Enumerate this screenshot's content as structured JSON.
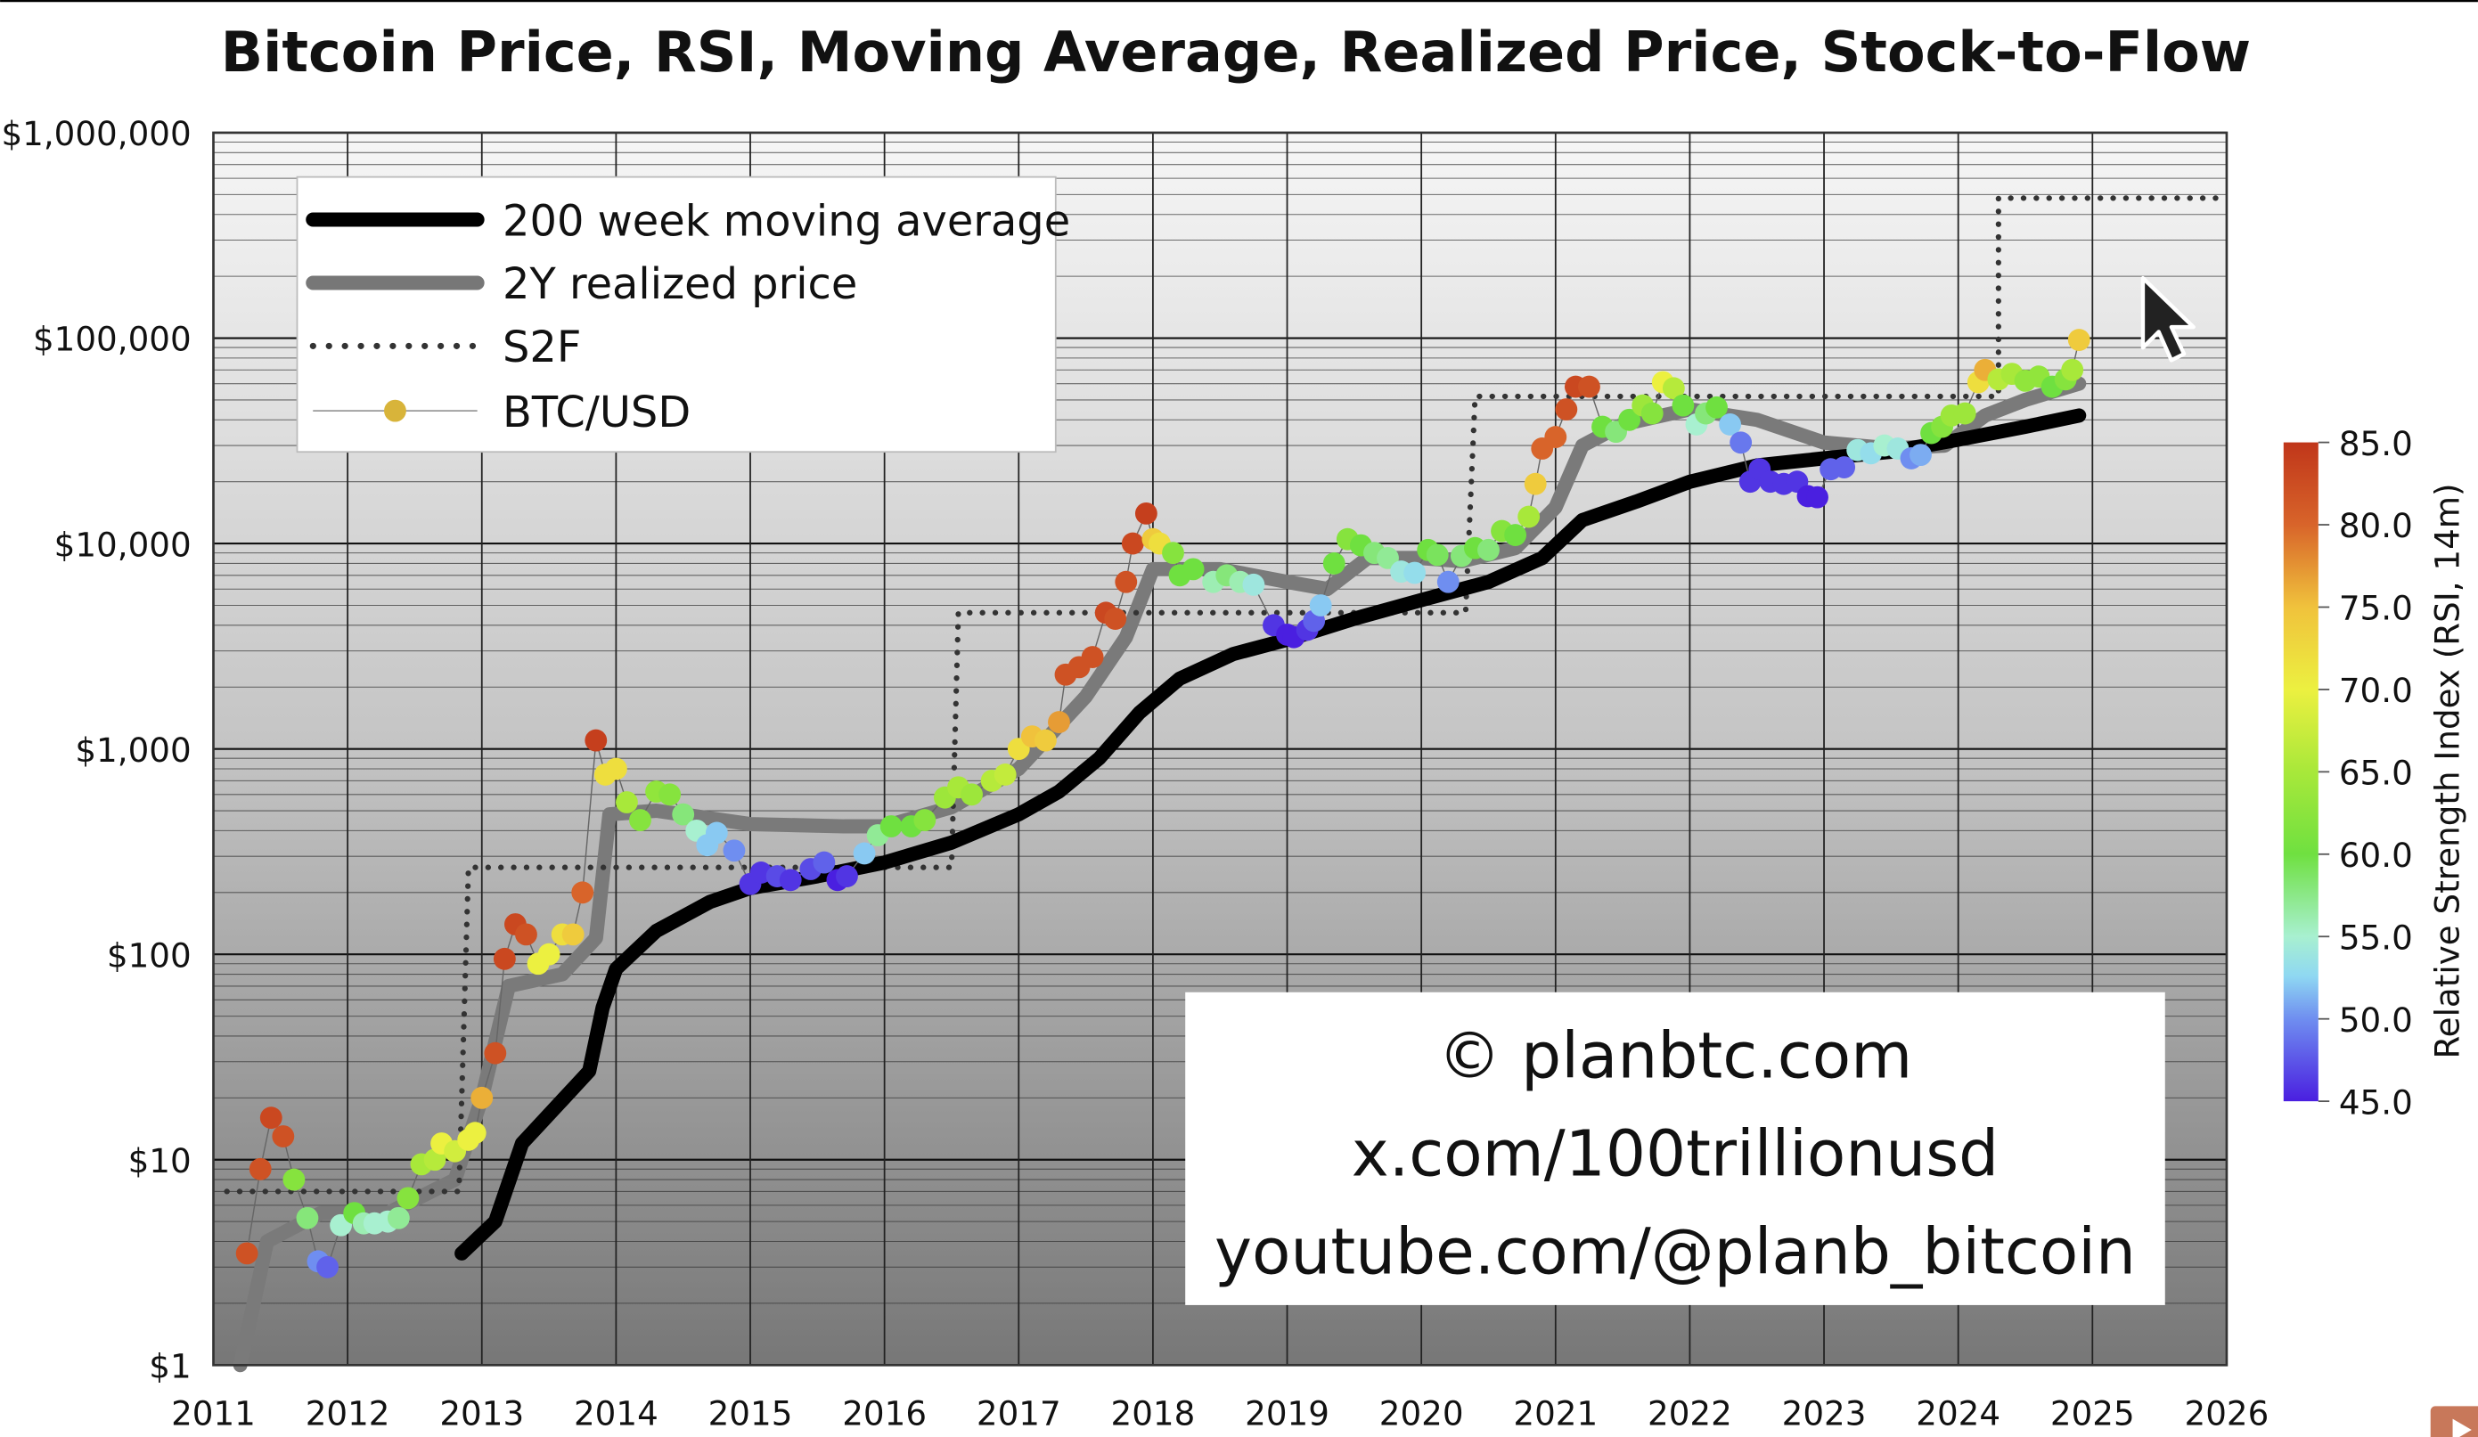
{
  "chart_data": {
    "type": "scatter",
    "title": "Bitcoin Price, RSI, Moving Average, Realized Price, Stock-to-Flow",
    "xlabel": "",
    "ylabel": "",
    "y_scale": "log",
    "xlim": [
      2011,
      2026
    ],
    "ylim": [
      1,
      1000000
    ],
    "grid": true,
    "x_ticks": [
      "2011",
      "2012",
      "2013",
      "2014",
      "2015",
      "2016",
      "2017",
      "2018",
      "2019",
      "2020",
      "2021",
      "2022",
      "2023",
      "2024",
      "2025",
      "2026"
    ],
    "y_ticks": [
      {
        "value": 1000000,
        "label": "$1,000,000"
      },
      {
        "value": 100000,
        "label": "$100,000"
      },
      {
        "value": 10000,
        "label": "$10,000"
      },
      {
        "value": 1000,
        "label": "$1,000"
      },
      {
        "value": 100,
        "label": "$100"
      },
      {
        "value": 10,
        "label": "$10"
      },
      {
        "value": 1,
        "label": "$1"
      }
    ],
    "legend": {
      "placement": "top-left",
      "entries": [
        "200 week moving average",
        "2Y realized price",
        "S2F",
        "BTC/USD"
      ]
    },
    "colorbar": {
      "label": "Relative Strength Index (RSI, 14m)",
      "range": [
        45,
        85
      ],
      "ticks": [
        "85.0",
        "80.0",
        "75.0",
        "70.0",
        "65.0",
        "60.0",
        "55.0",
        "50.0",
        "45.0"
      ],
      "colors": {
        "45": "#4a1fe0",
        "50": "#6f8ef0",
        "52.5": "#8fd8f2",
        "55": "#a8f0d0",
        "60": "#6fe040",
        "65": "#a8e83a",
        "70": "#ecf040",
        "75": "#f0c23c",
        "80": "#d8642a",
        "85": "#c0361a"
      }
    },
    "series": [
      {
        "name": "200 week moving average",
        "color": "#000000",
        "points": [
          [
            2012.85,
            3.5
          ],
          [
            2013.1,
            5
          ],
          [
            2013.3,
            12
          ],
          [
            2013.55,
            18
          ],
          [
            2013.8,
            27
          ],
          [
            2013.9,
            55
          ],
          [
            2014.0,
            85
          ],
          [
            2014.3,
            130
          ],
          [
            2014.7,
            180
          ],
          [
            2015.0,
            210
          ],
          [
            2015.5,
            240
          ],
          [
            2016.0,
            280
          ],
          [
            2016.5,
            350
          ],
          [
            2017.0,
            480
          ],
          [
            2017.3,
            620
          ],
          [
            2017.6,
            900
          ],
          [
            2017.9,
            1500
          ],
          [
            2018.2,
            2200
          ],
          [
            2018.6,
            2900
          ],
          [
            2019.0,
            3400
          ],
          [
            2019.5,
            4300
          ],
          [
            2020.0,
            5300
          ],
          [
            2020.5,
            6500
          ],
          [
            2020.9,
            8500
          ],
          [
            2021.2,
            13000
          ],
          [
            2021.6,
            16000
          ],
          [
            2022.0,
            20000
          ],
          [
            2022.5,
            24000
          ],
          [
            2023.0,
            26000
          ],
          [
            2023.5,
            28000
          ],
          [
            2024.0,
            32000
          ],
          [
            2024.5,
            37000
          ],
          [
            2024.9,
            42000
          ]
        ]
      },
      {
        "name": "2Y realized price",
        "color": "#7a7a7a",
        "points": [
          [
            2011.2,
            1
          ],
          [
            2011.4,
            4
          ],
          [
            2011.8,
            5.5
          ],
          [
            2012.3,
            5.5
          ],
          [
            2012.8,
            8
          ],
          [
            2013.0,
            20
          ],
          [
            2013.2,
            70
          ],
          [
            2013.6,
            80
          ],
          [
            2013.85,
            120
          ],
          [
            2013.95,
            480
          ],
          [
            2014.3,
            500
          ],
          [
            2015.0,
            430
          ],
          [
            2015.7,
            420
          ],
          [
            2016.0,
            420
          ],
          [
            2016.5,
            520
          ],
          [
            2017.0,
            800
          ],
          [
            2017.5,
            1800
          ],
          [
            2017.8,
            3500
          ],
          [
            2018.0,
            7500
          ],
          [
            2018.5,
            7500
          ],
          [
            2019.0,
            6500
          ],
          [
            2019.3,
            6000
          ],
          [
            2019.6,
            8500
          ],
          [
            2020.0,
            8500
          ],
          [
            2020.3,
            8200
          ],
          [
            2020.7,
            9500
          ],
          [
            2021.0,
            15000
          ],
          [
            2021.2,
            30000
          ],
          [
            2021.5,
            38000
          ],
          [
            2022.0,
            45000
          ],
          [
            2022.5,
            40000
          ],
          [
            2023.0,
            31000
          ],
          [
            2023.5,
            29000
          ],
          [
            2023.9,
            30000
          ],
          [
            2024.2,
            42000
          ],
          [
            2024.5,
            50000
          ],
          [
            2024.9,
            60000
          ]
        ]
      },
      {
        "name": "S2F",
        "color": "#333333",
        "points": [
          [
            2011.1,
            7
          ],
          [
            2012.83,
            7
          ],
          [
            2012.9,
            265
          ],
          [
            2016.5,
            265
          ],
          [
            2016.55,
            4600
          ],
          [
            2020.33,
            4600
          ],
          [
            2020.4,
            52000
          ],
          [
            2024.3,
            52000
          ],
          [
            2024.3,
            480000
          ],
          [
            2026,
            480000
          ]
        ]
      },
      {
        "name": "BTC/USD",
        "color_by": "rsi",
        "points": [
          [
            2011.25,
            3.5,
            82
          ],
          [
            2011.35,
            9,
            82
          ],
          [
            2011.43,
            16,
            83
          ],
          [
            2011.52,
            13,
            82
          ],
          [
            2011.6,
            8,
            62
          ],
          [
            2011.7,
            5.2,
            58
          ],
          [
            2011.78,
            3.2,
            50
          ],
          [
            2011.85,
            3,
            48
          ],
          [
            2011.95,
            4.8,
            55
          ],
          [
            2012.05,
            5.5,
            60
          ],
          [
            2012.12,
            4.9,
            56
          ],
          [
            2012.2,
            4.9,
            55
          ],
          [
            2012.3,
            5,
            55
          ],
          [
            2012.38,
            5.2,
            57
          ],
          [
            2012.45,
            6.5,
            62
          ],
          [
            2012.55,
            9.5,
            65
          ],
          [
            2012.65,
            10,
            66
          ],
          [
            2012.7,
            12,
            70
          ],
          [
            2012.8,
            11,
            68
          ],
          [
            2012.9,
            12.5,
            70
          ],
          [
            2012.95,
            13.5,
            70
          ],
          [
            2013.0,
            20,
            76
          ],
          [
            2013.1,
            33,
            82
          ],
          [
            2013.17,
            95,
            83
          ],
          [
            2013.25,
            140,
            83
          ],
          [
            2013.33,
            125,
            82
          ],
          [
            2013.42,
            90,
            70
          ],
          [
            2013.5,
            100,
            70
          ],
          [
            2013.6,
            125,
            72
          ],
          [
            2013.68,
            125,
            74
          ],
          [
            2013.75,
            200,
            80
          ],
          [
            2013.85,
            1100,
            84
          ],
          [
            2013.92,
            750,
            72
          ],
          [
            2014.0,
            800,
            72
          ],
          [
            2014.08,
            550,
            65
          ],
          [
            2014.18,
            450,
            62
          ],
          [
            2014.3,
            620,
            63
          ],
          [
            2014.4,
            600,
            62
          ],
          [
            2014.5,
            480,
            58
          ],
          [
            2014.6,
            400,
            55
          ],
          [
            2014.68,
            340,
            52
          ],
          [
            2014.75,
            390,
            52
          ],
          [
            2014.88,
            320,
            50
          ],
          [
            2015.0,
            220,
            46
          ],
          [
            2015.08,
            250,
            46
          ],
          [
            2015.2,
            240,
            47
          ],
          [
            2015.3,
            230,
            46
          ],
          [
            2015.45,
            260,
            47
          ],
          [
            2015.55,
            280,
            48
          ],
          [
            2015.65,
            230,
            45
          ],
          [
            2015.72,
            240,
            46
          ],
          [
            2015.85,
            310,
            52
          ],
          [
            2015.95,
            380,
            57
          ],
          [
            2016.05,
            420,
            60
          ],
          [
            2016.2,
            420,
            60
          ],
          [
            2016.3,
            450,
            62
          ],
          [
            2016.45,
            580,
            64
          ],
          [
            2016.55,
            650,
            65
          ],
          [
            2016.65,
            600,
            64
          ],
          [
            2016.8,
            700,
            66
          ],
          [
            2016.9,
            750,
            67
          ],
          [
            2017.0,
            1000,
            72
          ],
          [
            2017.1,
            1150,
            75
          ],
          [
            2017.2,
            1100,
            74
          ],
          [
            2017.3,
            1350,
            77
          ],
          [
            2017.35,
            2300,
            82
          ],
          [
            2017.45,
            2500,
            82
          ],
          [
            2017.55,
            2800,
            82
          ],
          [
            2017.65,
            4600,
            83
          ],
          [
            2017.72,
            4300,
            82
          ],
          [
            2017.8,
            6500,
            82
          ],
          [
            2017.85,
            10000,
            83
          ],
          [
            2017.95,
            14000,
            84
          ],
          [
            2018.0,
            10500,
            74
          ],
          [
            2018.05,
            10000,
            72
          ],
          [
            2018.15,
            9000,
            62
          ],
          [
            2018.2,
            7000,
            60
          ],
          [
            2018.3,
            7500,
            60
          ],
          [
            2018.45,
            6500,
            56
          ],
          [
            2018.55,
            7000,
            58
          ],
          [
            2018.65,
            6500,
            56
          ],
          [
            2018.75,
            6300,
            54
          ],
          [
            2018.9,
            4000,
            46
          ],
          [
            2019.0,
            3600,
            45
          ],
          [
            2019.05,
            3500,
            45
          ],
          [
            2019.15,
            3800,
            46
          ],
          [
            2019.2,
            4200,
            48
          ],
          [
            2019.25,
            5000,
            52
          ],
          [
            2019.35,
            8000,
            60
          ],
          [
            2019.45,
            10500,
            62
          ],
          [
            2019.55,
            9800,
            60
          ],
          [
            2019.65,
            9000,
            58
          ],
          [
            2019.75,
            8500,
            57
          ],
          [
            2019.85,
            7300,
            54
          ],
          [
            2019.95,
            7200,
            53
          ],
          [
            2020.05,
            9300,
            60
          ],
          [
            2020.12,
            8800,
            59
          ],
          [
            2020.2,
            6500,
            50
          ],
          [
            2020.3,
            8700,
            58
          ],
          [
            2020.4,
            9500,
            60
          ],
          [
            2020.5,
            9300,
            58
          ],
          [
            2020.6,
            11500,
            62
          ],
          [
            2020.7,
            11000,
            60
          ],
          [
            2020.8,
            13500,
            65
          ],
          [
            2020.85,
            19500,
            74
          ],
          [
            2020.9,
            29000,
            80
          ],
          [
            2021.0,
            33000,
            80
          ],
          [
            2021.08,
            45000,
            82
          ],
          [
            2021.15,
            58000,
            83
          ],
          [
            2021.25,
            58000,
            82
          ],
          [
            2021.35,
            37000,
            60
          ],
          [
            2021.45,
            35000,
            58
          ],
          [
            2021.55,
            40000,
            60
          ],
          [
            2021.65,
            47000,
            64
          ],
          [
            2021.72,
            43000,
            62
          ],
          [
            2021.8,
            61000,
            70
          ],
          [
            2021.88,
            57000,
            66
          ],
          [
            2021.95,
            47000,
            60
          ],
          [
            2022.05,
            38000,
            55
          ],
          [
            2022.12,
            43000,
            58
          ],
          [
            2022.2,
            46000,
            60
          ],
          [
            2022.3,
            38000,
            52
          ],
          [
            2022.38,
            31000,
            49
          ],
          [
            2022.45,
            20000,
            46
          ],
          [
            2022.52,
            23000,
            46
          ],
          [
            2022.6,
            20000,
            46
          ],
          [
            2022.7,
            19500,
            46
          ],
          [
            2022.8,
            20000,
            46
          ],
          [
            2022.88,
            17000,
            45
          ],
          [
            2022.95,
            16800,
            45
          ],
          [
            2023.05,
            23000,
            48
          ],
          [
            2023.15,
            23500,
            48
          ],
          [
            2023.25,
            28500,
            54
          ],
          [
            2023.35,
            27500,
            53
          ],
          [
            2023.45,
            30000,
            55
          ],
          [
            2023.55,
            29000,
            54
          ],
          [
            2023.65,
            26000,
            50
          ],
          [
            2023.72,
            27000,
            51
          ],
          [
            2023.8,
            34500,
            60
          ],
          [
            2023.88,
            37000,
            62
          ],
          [
            2023.95,
            42000,
            64
          ],
          [
            2024.05,
            43000,
            64
          ],
          [
            2024.15,
            61000,
            72
          ],
          [
            2024.2,
            70000,
            76
          ],
          [
            2024.3,
            63000,
            66
          ],
          [
            2024.4,
            67000,
            65
          ],
          [
            2024.5,
            62000,
            63
          ],
          [
            2024.6,
            65000,
            63
          ],
          [
            2024.7,
            58000,
            60
          ],
          [
            2024.8,
            63000,
            62
          ],
          [
            2024.85,
            70000,
            65
          ],
          [
            2024.9,
            98000,
            74
          ]
        ]
      }
    ],
    "annotation_lines": [
      "© planbtc.com",
      "x.com/100trillionusd",
      "youtube.com/@planb_bitcoin"
    ]
  },
  "overlay": {
    "cursor": "arrow-cursor-icon",
    "corner_icon": "play-icon",
    "corner_color": "#c8785a"
  }
}
